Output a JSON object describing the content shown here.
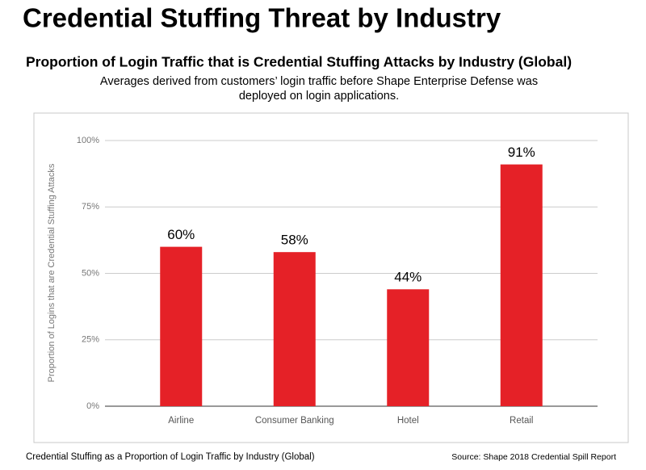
{
  "chart_data": {
    "type": "bar",
    "title": "Credential Stuffing Threat by Industry",
    "subtitle": "Proportion of Login Traffic that is Credential Stuffing Attacks by Industry (Global)",
    "description": [
      "Averages derived from customers’ login traffic before Shape Enterprise Defense was",
      "deployed on login applications."
    ],
    "y_label": "Proportion of Logins that are Credential Stuffing Attacks",
    "categories": [
      "Airline",
      "Consumer Banking",
      "Hotel",
      "Retail"
    ],
    "values": [
      60,
      58,
      44,
      91
    ],
    "value_labels": [
      "60%",
      "58%",
      "44%",
      "91%"
    ],
    "color": "#e52127",
    "ylim": [
      0,
      100
    ],
    "yticks": [
      {
        "value": 0,
        "label": "0%"
      },
      {
        "value": 25,
        "label": "25%"
      },
      {
        "value": 50,
        "label": "50%"
      },
      {
        "value": 75,
        "label": "75%"
      },
      {
        "value": 100,
        "label": "100%"
      }
    ],
    "grid": true,
    "caption": "Credential Stuffing as a Proportion of Login Traffic by Industry (Global)",
    "source": "Source: Shape 2018 Credential Spill Report"
  }
}
